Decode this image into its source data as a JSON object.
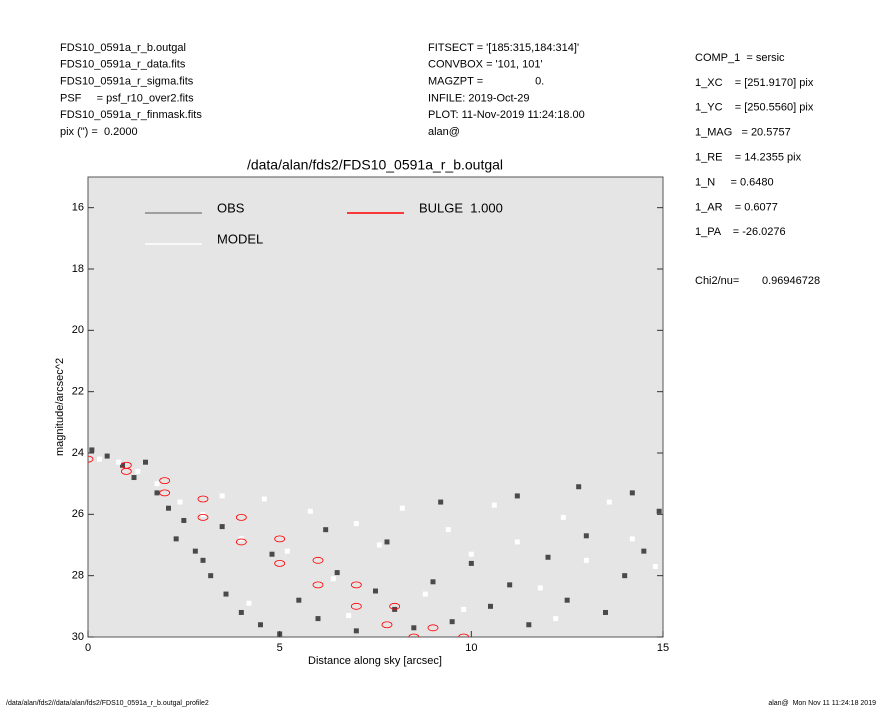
{
  "header": {
    "left": [
      "FDS10_0591a_r_b.outgal",
      "FDS10_0591a_r_data.fits",
      "FDS10_0591a_r_sigma.fits",
      "PSF     = psf_r10_over2.fits",
      "FDS10_0591a_r_finmask.fits",
      "pix (\") =  0.2000"
    ],
    "middle": [
      "FITSECT = '[185:315,184:314]'",
      "CONVBOX = '101, 101'",
      "MAGZPT =                 0.",
      "INFILE: 2019-Oct-29",
      "PLOT: 11-Nov-2019 11:24:18.00",
      "alan@"
    ],
    "right": [
      "COMP_1  = sersic",
      "1_XC    = [251.9170] pix",
      "1_YC    = [250.5560] pix",
      "1_MAG   = 20.5757",
      "1_RE    = 14.2355 pix",
      "1_N     = 0.6480",
      "1_AR    = 0.6077",
      "1_PA    = -26.0276"
    ],
    "chi2_label": "Chi2/nu=",
    "chi2_value": "0.96946728"
  },
  "footer": {
    "left": "/data/alan/fds2//data/alan/fds2/FDS10_0591a_r_b.outgal_profile2",
    "right": "alan@  Mon Nov 11 11:24:18 2019"
  },
  "chart_data": {
    "type": "scatter",
    "title": "/data/alan/fds2/FDS10_0591a_r_b.outgal",
    "xlabel": "Distance along sky [arcsec]",
    "ylabel": "magnitude/arcsec^2",
    "xlim": [
      0,
      15
    ],
    "ylim": [
      30,
      15
    ],
    "xticks": [
      0,
      5,
      10,
      15
    ],
    "yticks": [
      16,
      18,
      20,
      22,
      24,
      26,
      28,
      30
    ],
    "series": [
      {
        "name": "OBS",
        "color": "#4a4a4a",
        "x": [
          0.1,
          0.5,
          0.9,
          1.2,
          1.5,
          1.8,
          2.1,
          2.5,
          2.8,
          3.2,
          3.6,
          4.0,
          4.5,
          5.0,
          5.5,
          6.0,
          6.5,
          7.0,
          7.5,
          8.0,
          8.5,
          9.0,
          9.5,
          10,
          10.5,
          11,
          11.5,
          12,
          12.5,
          13,
          13.5,
          14,
          14.5,
          14.9,
          3.5,
          4.8,
          6.2,
          7.8,
          9.2,
          11.2,
          12.8,
          14.2,
          2.3,
          3.0
        ],
        "values": [
          23.9,
          24.1,
          24.4,
          24.8,
          24.3,
          25.3,
          25.8,
          26.2,
          27.2,
          28.0,
          28.6,
          29.2,
          29.6,
          29.9,
          28.8,
          29.4,
          27.9,
          29.8,
          28.5,
          29.1,
          29.7,
          28.2,
          29.5,
          27.6,
          29.0,
          28.3,
          29.6,
          27.4,
          28.8,
          26.7,
          29.2,
          28.0,
          27.2,
          25.9,
          26.4,
          27.3,
          26.5,
          26.9,
          25.6,
          25.4,
          25.1,
          25.3,
          26.8,
          27.5
        ]
      },
      {
        "name": "MODEL",
        "color": "#ffffff",
        "x": [
          0.3,
          0.8,
          1.3,
          1.8,
          2.4,
          3.0,
          3.5,
          4.0,
          4.6,
          5.2,
          5.8,
          6.4,
          7.0,
          7.6,
          8.2,
          8.8,
          9.4,
          10,
          10.6,
          11.2,
          11.8,
          12.4,
          13,
          13.6,
          14.2,
          14.8,
          4.2,
          6.8,
          9.8,
          12.2
        ],
        "values": [
          24.2,
          24.3,
          24.6,
          25.0,
          25.6,
          26.0,
          25.4,
          26.8,
          25.5,
          27.2,
          25.9,
          28.1,
          26.3,
          27.0,
          25.8,
          28.6,
          26.5,
          27.3,
          25.7,
          26.9,
          28.4,
          26.1,
          27.5,
          25.6,
          26.8,
          27.7,
          28.9,
          29.3,
          29.1,
          29.4
        ]
      },
      {
        "name": "BULGE  1.000",
        "color": "#ff0000",
        "x": [
          0,
          1,
          2,
          3,
          4,
          5,
          6,
          7,
          8,
          9,
          9.8,
          1,
          2,
          3,
          4,
          5,
          6,
          7,
          7.8,
          8.5
        ],
        "values": [
          24.2,
          24.4,
          24.9,
          25.5,
          26.1,
          26.8,
          27.5,
          28.3,
          29.0,
          29.7,
          30.0,
          24.6,
          25.3,
          26.1,
          26.9,
          27.6,
          28.3,
          29.0,
          29.6,
          30.0
        ]
      }
    ]
  }
}
